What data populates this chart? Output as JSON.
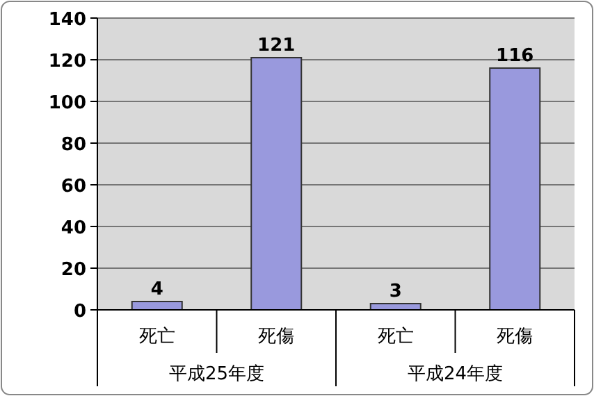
{
  "chart_data": {
    "type": "bar",
    "categories": [
      "死亡",
      "死傷",
      "死亡",
      "死傷"
    ],
    "values": [
      4,
      121,
      3,
      116
    ],
    "color": "#9999dd",
    "ylim": [
      0,
      140
    ],
    "yticks": [
      0,
      20,
      40,
      60,
      80,
      100,
      120,
      140
    ],
    "grid": "y",
    "data_labels": true,
    "annotations": [
      "平成25年度",
      "平成24年度"
    ]
  }
}
